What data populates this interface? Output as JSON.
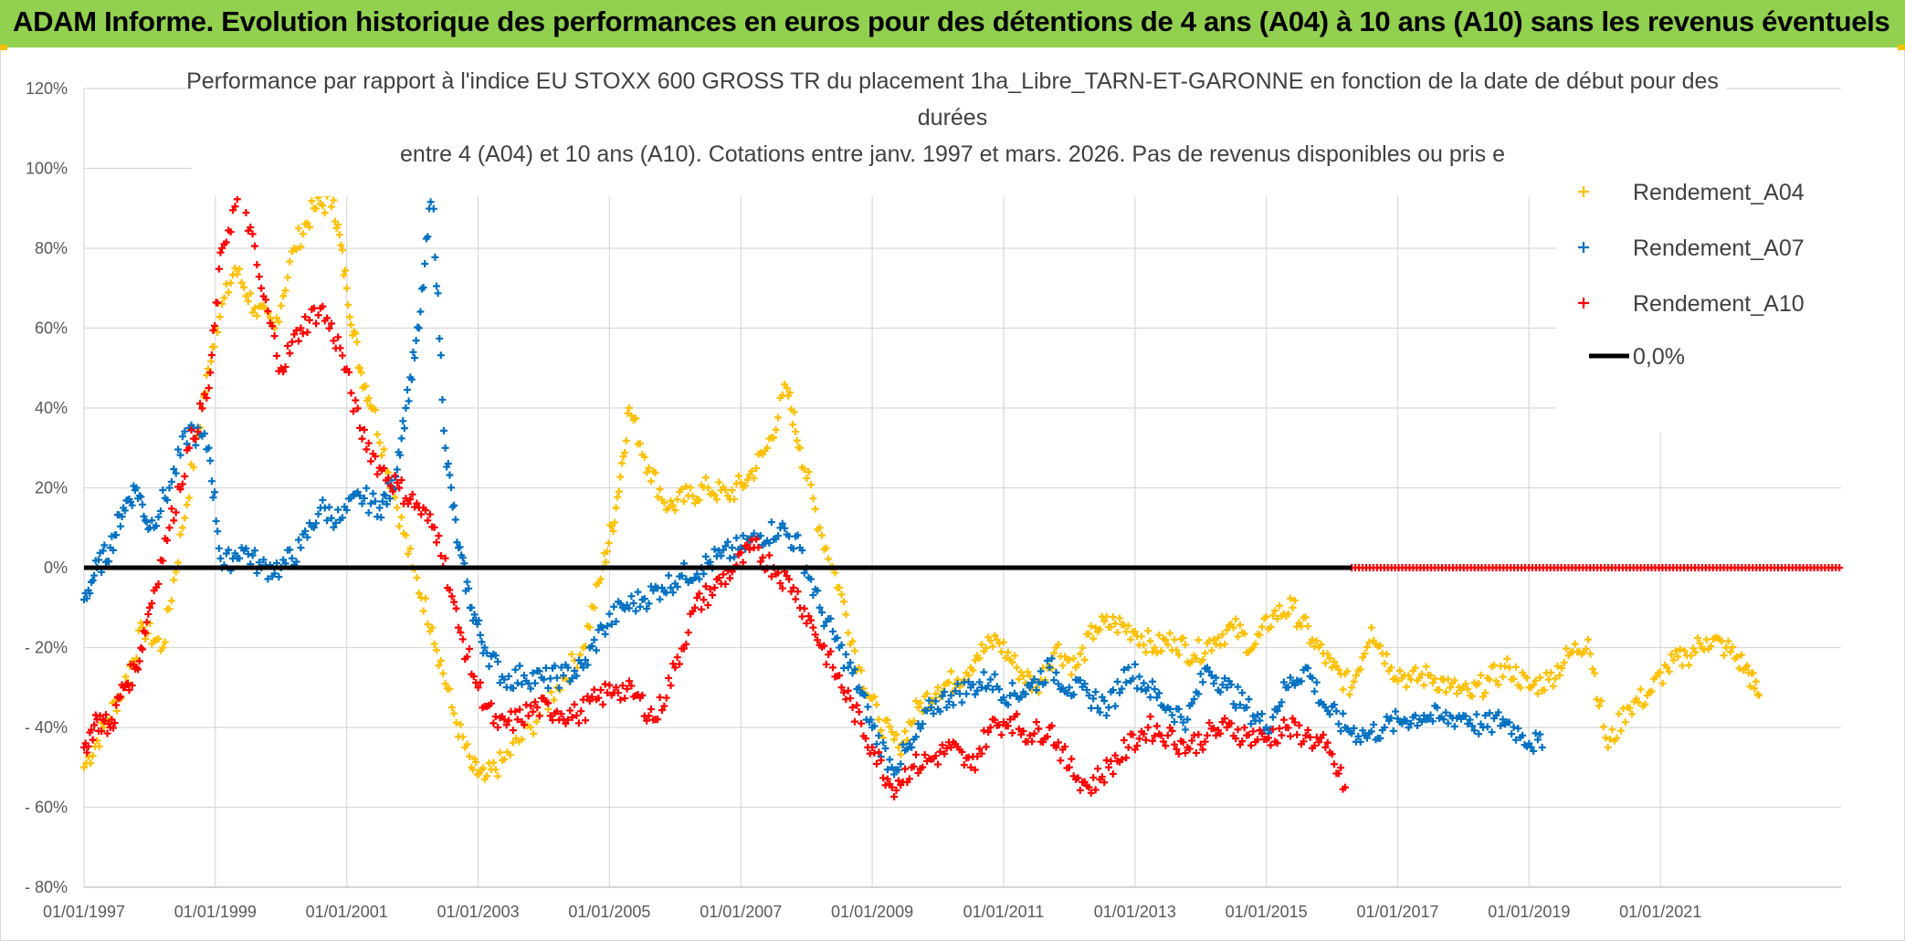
{
  "header": {
    "banner": "ADAM Informe. Evolution historique des performances en euros pour des détentions de 4 ans (A04) à 10 ans (A10) sans les revenus éventuels"
  },
  "colors": {
    "banner_bg": "#92d050",
    "A04": "#ffc000",
    "A07": "#0070c0",
    "A10": "#ff0000",
    "zero_line": "#000000"
  },
  "chart_data": {
    "type": "scatter",
    "title": [
      "Performance par rapport à l'indice EU STOXX 600 GROSS TR  du placement 1ha_Libre_TARN-ET-GARONNE en fonction de la date de début pour des",
      "durées",
      "entre 4 (A04) et 10 ans (A10). Cotations entre janv. 1997 et mars. 2026. Pas de revenus disponibles ou pris e"
    ],
    "xlim": [
      1997.0,
      2023.75
    ],
    "ylim": [
      -80,
      120
    ],
    "y_ticks": [
      120,
      100,
      80,
      60,
      40,
      20,
      0,
      -20,
      -40,
      -60,
      -80
    ],
    "y_tick_labels": [
      "120%",
      "100%",
      "80%",
      "60%",
      "40%",
      "20%",
      "0%",
      "- 20%",
      "- 40%",
      "- 60%",
      "- 80%"
    ],
    "x_ticks": [
      1997,
      1999,
      2001,
      2003,
      2005,
      2007,
      2009,
      2011,
      2013,
      2015,
      2017,
      2019,
      2021
    ],
    "x_tick_labels": [
      "01/01/1997",
      "01/01/1999",
      "01/01/2001",
      "01/01/2003",
      "01/01/2005",
      "01/01/2007",
      "01/01/2009",
      "01/01/2011",
      "01/01/2013",
      "01/01/2015",
      "01/01/2017",
      "01/01/2019",
      "01/01/2021"
    ],
    "grid": true,
    "legend_position": "right",
    "reference_line": {
      "name": "0,0%",
      "y": 0
    },
    "series": [
      {
        "name": "Rendement_A04",
        "x": [
          1997.0,
          1997.3,
          1997.6,
          1997.9,
          1998.2,
          1998.5,
          1998.8,
          1999.0,
          1999.3,
          1999.6,
          1999.9,
          2000.2,
          2000.5,
          2000.8,
          2001.0,
          2001.2,
          2001.4,
          2001.7,
          2002.0,
          2002.3,
          2002.6,
          2002.9,
          2003.1,
          2003.4,
          2003.8,
          2004.2,
          2004.6,
          2004.9,
          2005.1,
          2005.3,
          2005.6,
          2005.9,
          2006.2,
          2006.5,
          2006.8,
          2007.1,
          2007.4,
          2007.7,
          2007.9,
          2008.2,
          2008.5,
          2008.8,
          2009.1,
          2009.4,
          2009.7,
          2010.0,
          2010.3,
          2010.6,
          2010.9,
          2011.2,
          2011.5,
          2011.8,
          2012.1,
          2012.4,
          2012.7,
          2013.0,
          2013.3,
          2013.6,
          2013.9,
          2014.2,
          2014.5,
          2014.8,
          2015.1,
          2015.4,
          2015.7,
          2016.0,
          2016.3,
          2016.6,
          2016.9,
          2017.2,
          2017.5,
          2017.8,
          2018.1,
          2018.4,
          2018.7,
          2019.0,
          2019.3,
          2019.6,
          2019.9,
          2020.2,
          2020.5,
          2020.8,
          2021.1,
          2021.4,
          2021.7,
          2022.0,
          2022.3,
          2022.5
        ],
        "y": [
          -50,
          -40,
          -30,
          -15,
          -20,
          10,
          40,
          60,
          75,
          65,
          60,
          80,
          90,
          92,
          70,
          50,
          40,
          20,
          0,
          -15,
          -35,
          -50,
          -53,
          -48,
          -40,
          -30,
          -20,
          0,
          15,
          40,
          25,
          15,
          18,
          20,
          18,
          22,
          30,
          45,
          30,
          10,
          -5,
          -25,
          -38,
          -45,
          -35,
          -30,
          -28,
          -22,
          -18,
          -25,
          -30,
          -20,
          -25,
          -15,
          -14,
          -16,
          -20,
          -18,
          -22,
          -18,
          -15,
          -20,
          -12,
          -10,
          -18,
          -25,
          -30,
          -15,
          -25,
          -28,
          -27,
          -30,
          -32,
          -28,
          -25,
          -30,
          -28,
          -22,
          -18,
          -45,
          -35,
          -32,
          -25,
          -22,
          -18,
          -20,
          -25,
          -32
        ]
      },
      {
        "name": "Rendement_A07",
        "x": [
          1997.0,
          1997.2,
          1997.4,
          1997.6,
          1997.8,
          1998.0,
          1998.3,
          1998.6,
          1998.9,
          1999.1,
          1999.4,
          1999.7,
          2000.0,
          2000.3,
          2000.6,
          2000.9,
          2001.2,
          2001.5,
          2001.7,
          2001.9,
          2002.1,
          2002.3,
          2002.5,
          2002.7,
          2002.9,
          2003.1,
          2003.4,
          2003.7,
          2004.0,
          2004.3,
          2004.6,
          2004.9,
          2005.2,
          2005.5,
          2005.8,
          2006.1,
          2006.4,
          2006.7,
          2007.0,
          2007.3,
          2007.6,
          2007.9,
          2008.2,
          2008.5,
          2008.8,
          2009.0,
          2009.3,
          2009.6,
          2009.9,
          2010.2,
          2010.5,
          2010.8,
          2011.1,
          2011.4,
          2011.7,
          2012.0,
          2012.3,
          2012.6,
          2012.9,
          2013.2,
          2013.5,
          2013.8,
          2014.1,
          2014.4,
          2014.7,
          2015.0,
          2015.3,
          2015.6,
          2015.9,
          2016.2,
          2016.5,
          2016.8,
          2017.1,
          2017.4,
          2017.7,
          2018.0,
          2018.3,
          2018.6,
          2018.9,
          2019.2
        ],
        "y": [
          -8,
          0,
          5,
          15,
          20,
          10,
          20,
          35,
          30,
          0,
          5,
          0,
          0,
          5,
          15,
          12,
          18,
          15,
          20,
          40,
          60,
          95,
          30,
          5,
          -10,
          -20,
          -28,
          -27,
          -28,
          -27,
          -25,
          -15,
          -10,
          -8,
          -5,
          -2,
          0,
          3,
          5,
          8,
          10,
          5,
          -10,
          -20,
          -30,
          -40,
          -50,
          -45,
          -35,
          -32,
          -30,
          -28,
          -32,
          -30,
          -25,
          -30,
          -32,
          -35,
          -25,
          -30,
          -35,
          -38,
          -25,
          -30,
          -35,
          -40,
          -30,
          -25,
          -35,
          -40,
          -42,
          -40,
          -38,
          -37,
          -38,
          -37,
          -40,
          -38,
          -42,
          -45
        ]
      },
      {
        "name": "Rendement_A10",
        "x": [
          1997.0,
          1997.2,
          1997.4,
          1997.6,
          1997.8,
          1998.0,
          1998.3,
          1998.6,
          1998.9,
          1999.1,
          1999.4,
          1999.7,
          2000.0,
          2000.3,
          2000.6,
          2000.9,
          2001.2,
          2001.5,
          2001.8,
          2002.1,
          2002.4,
          2002.7,
          2003.0,
          2003.3,
          2003.6,
          2003.9,
          2004.2,
          2004.5,
          2004.8,
          2005.1,
          2005.4,
          2005.7,
          2006.0,
          2006.3,
          2006.6,
          2006.9,
          2007.2,
          2007.5,
          2007.8,
          2008.1,
          2008.4,
          2008.7,
          2009.0,
          2009.3,
          2009.6,
          2009.9,
          2010.2,
          2010.5,
          2010.8,
          2011.1,
          2011.4,
          2011.7,
          2012.0,
          2012.3,
          2012.6,
          2012.9,
          2013.2,
          2013.5,
          2013.8,
          2014.1,
          2014.4,
          2014.7,
          2015.0,
          2015.3,
          2015.6,
          2015.9,
          2016.2
        ],
        "y": [
          -45,
          -38,
          -40,
          -30,
          -25,
          -10,
          10,
          30,
          45,
          80,
          95,
          70,
          50,
          60,
          65,
          55,
          35,
          25,
          20,
          15,
          8,
          -15,
          -30,
          -40,
          -38,
          -35,
          -36,
          -37,
          -33,
          -30,
          -32,
          -38,
          -25,
          -10,
          -5,
          0,
          5,
          0,
          -5,
          -15,
          -25,
          -35,
          -45,
          -55,
          -50,
          -48,
          -45,
          -50,
          -40,
          -38,
          -42,
          -40,
          -50,
          -55,
          -50,
          -45,
          -40,
          -42,
          -45,
          -42,
          -40,
          -42,
          -43,
          -40,
          -42,
          -45,
          -55
        ]
      }
    ],
    "flat_segment": {
      "name": "Rendement_A10",
      "x_start": 2016.3,
      "x_end": 2023.75,
      "y": 0
    }
  }
}
